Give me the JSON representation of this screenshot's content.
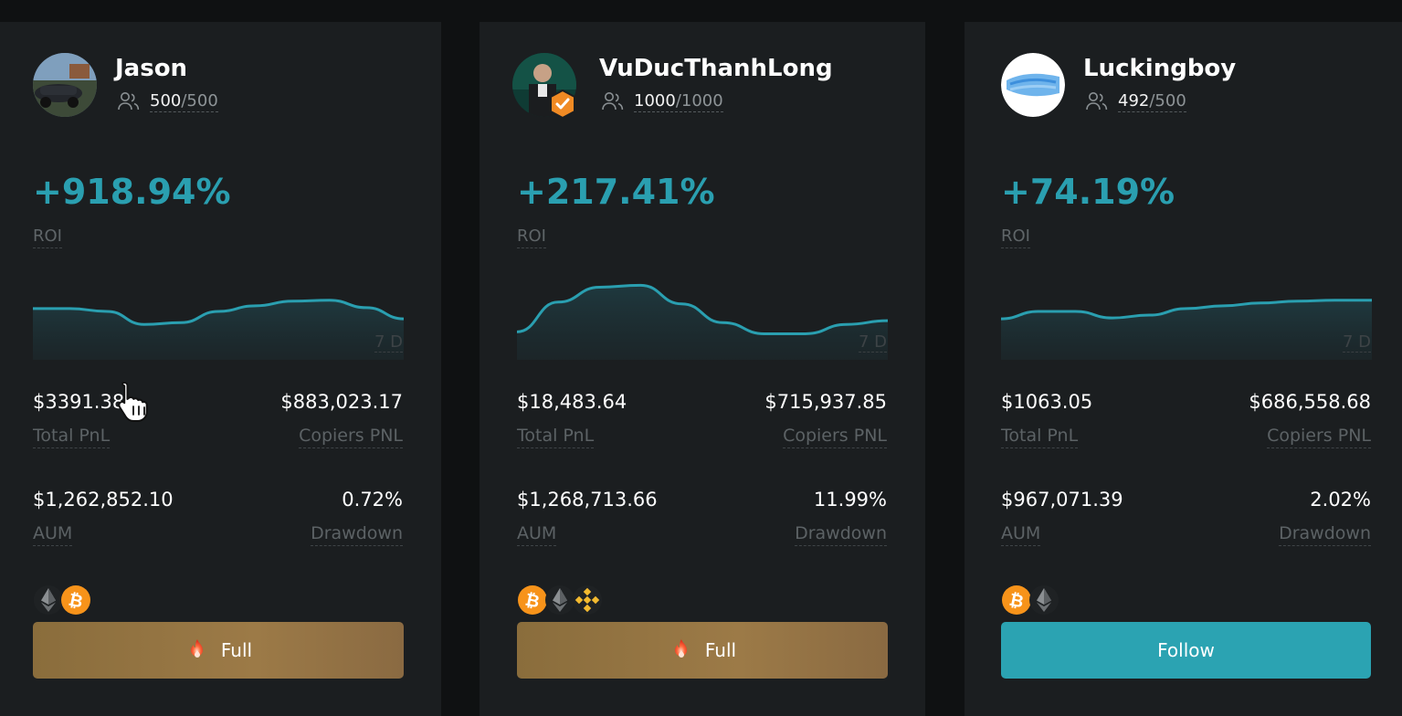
{
  "colors": {
    "accent": "#2a9fb0",
    "card_bg": "#1b1e20",
    "full_button": "#957443",
    "follow_button": "#2ba3b2"
  },
  "traders": [
    {
      "name": "Jason",
      "copiers_current": "500",
      "copiers_max": "/500",
      "roi": "+918.94%",
      "roi_label": "ROI",
      "period": "7 D",
      "total_pnl": "$3391.38",
      "total_pnl_label": "Total PnL",
      "copiers_pnl": "$883,023.17",
      "copiers_pnl_label": "Copiers PNL",
      "aum": "$1,262,852.10",
      "aum_label": "AUM",
      "drawdown": "0.72%",
      "drawdown_label": "Drawdown",
      "coins": [
        "ethereum-icon",
        "bitcoin-icon"
      ],
      "action_label": "Full",
      "action_state": "full",
      "roi_trend": [
        0.55,
        0.55,
        0.52,
        0.38,
        0.4,
        0.52,
        0.58,
        0.63,
        0.64,
        0.56,
        0.44
      ]
    },
    {
      "name": "VuDucThanhLong",
      "copiers_current": "1000",
      "copiers_max": "/1000",
      "roi": "+217.41%",
      "roi_label": "ROI",
      "period": "7 D",
      "total_pnl": "$18,483.64",
      "total_pnl_label": "Total PnL",
      "copiers_pnl": "$715,937.85",
      "copiers_pnl_label": "Copiers PNL",
      "aum": "$1,268,713.66",
      "aum_label": "AUM",
      "drawdown": "11.99%",
      "drawdown_label": "Drawdown",
      "coins": [
        "bitcoin-icon",
        "ethereum-icon",
        "binance-coin-icon"
      ],
      "action_label": "Full",
      "action_state": "full",
      "roi_trend": [
        0.3,
        0.62,
        0.78,
        0.8,
        0.6,
        0.4,
        0.28,
        0.28,
        0.38,
        0.42
      ]
    },
    {
      "name": "Luckingboy",
      "copiers_current": "492",
      "copiers_max": "/500",
      "roi": "+74.19%",
      "roi_label": "ROI",
      "period": "7 D",
      "total_pnl": "$1063.05",
      "total_pnl_label": "Total PnL",
      "copiers_pnl": "$686,558.68",
      "copiers_pnl_label": "Copiers PNL",
      "aum": "$967,071.39",
      "aum_label": "AUM",
      "drawdown": "2.02%",
      "drawdown_label": "Drawdown",
      "coins": [
        "bitcoin-icon",
        "ethereum-icon"
      ],
      "action_label": "Follow",
      "action_state": "follow",
      "roi_trend": [
        0.44,
        0.52,
        0.52,
        0.45,
        0.48,
        0.55,
        0.58,
        0.61,
        0.63,
        0.64,
        0.64
      ]
    }
  ]
}
